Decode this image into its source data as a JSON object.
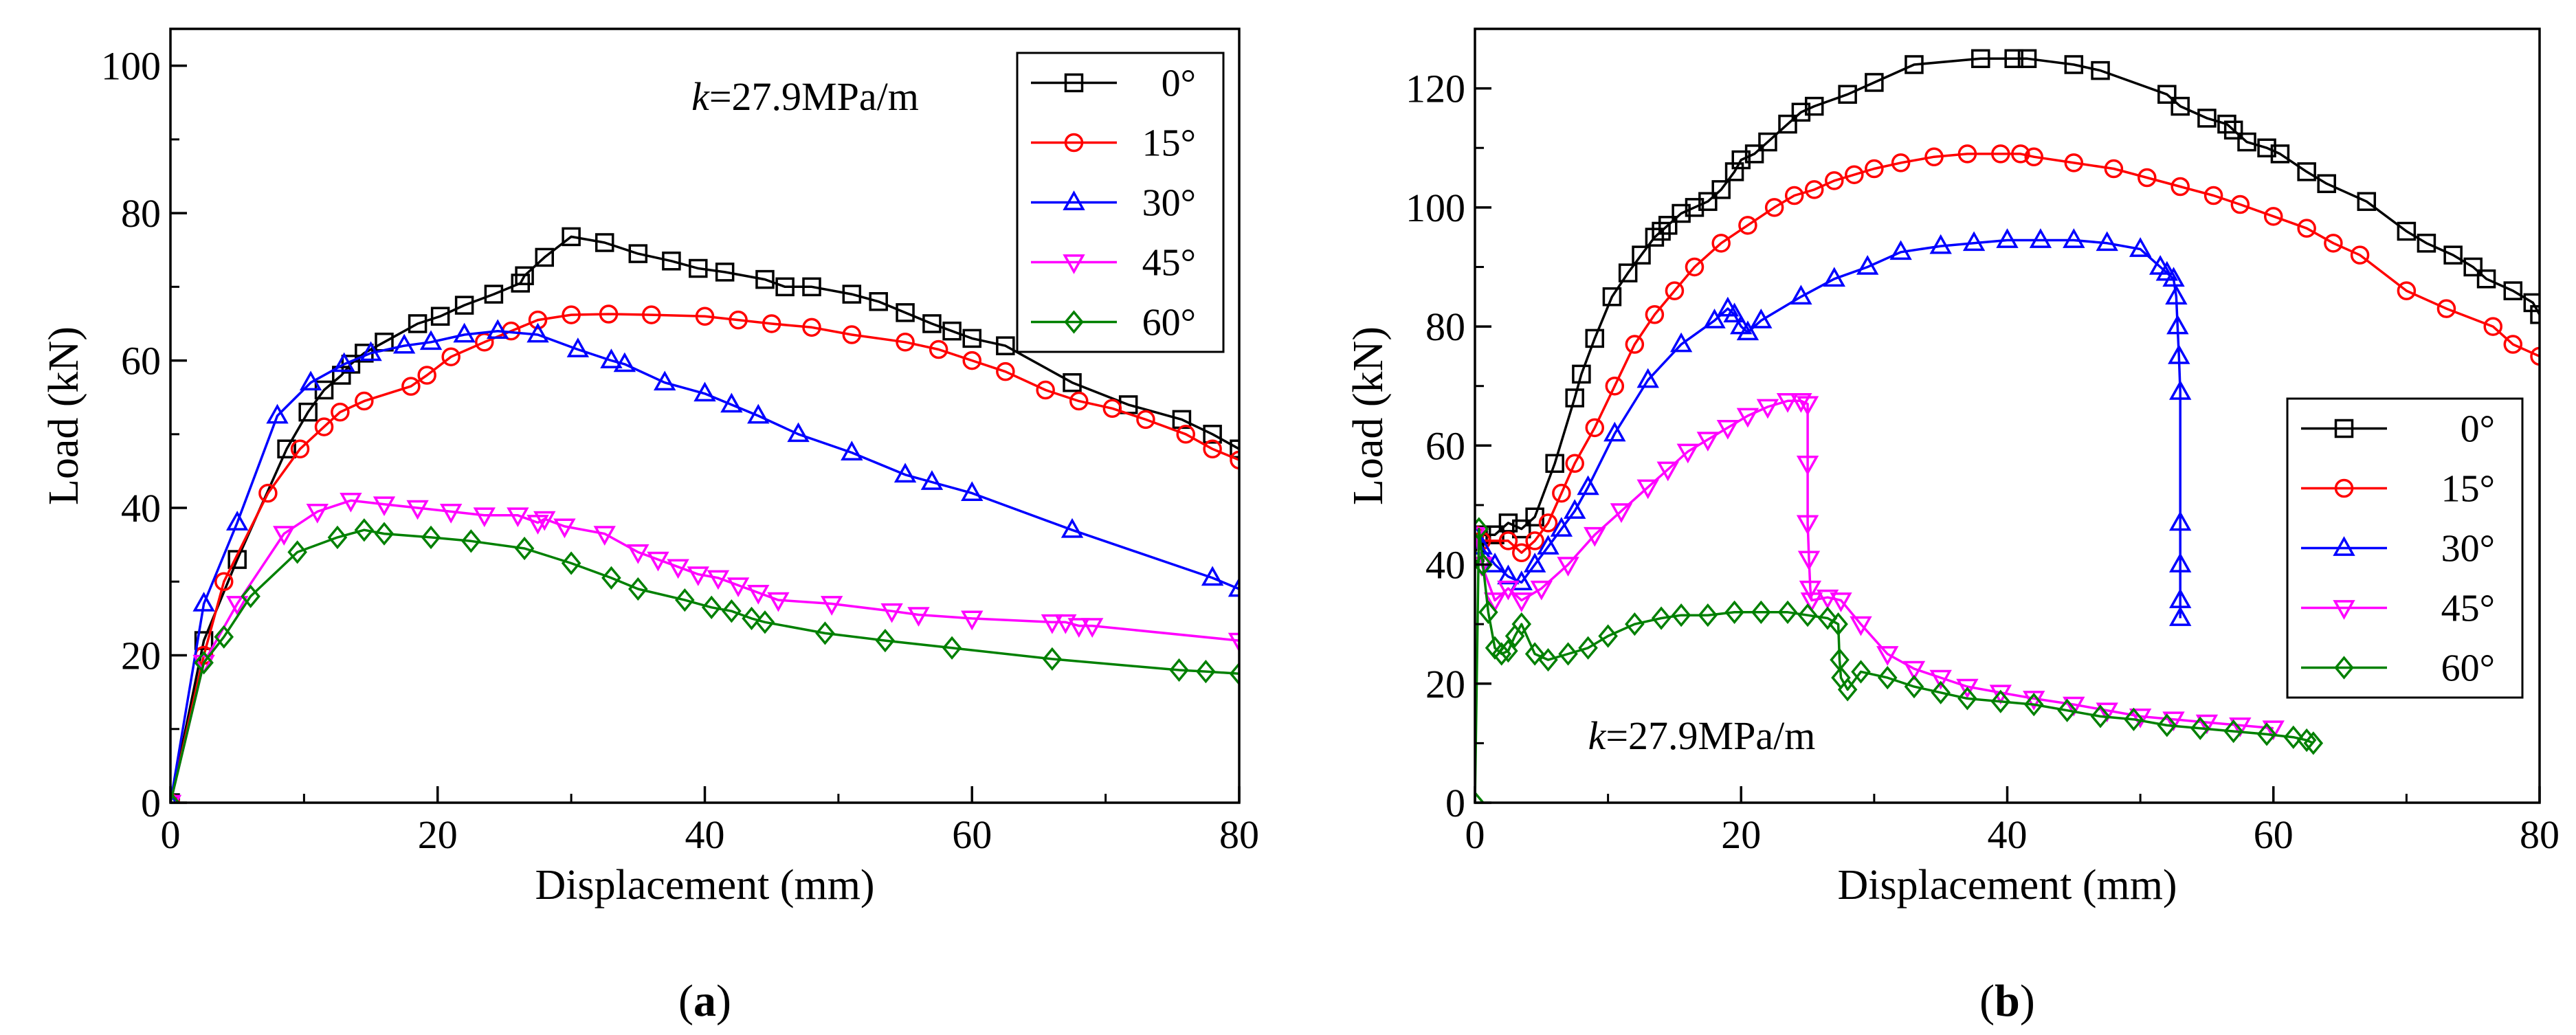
{
  "chart_data": [
    {
      "panel_label": "(a)",
      "panel_letter": "a",
      "type": "line",
      "xlabel": "Displacement (mm)",
      "ylabel": "Load (kN)",
      "xlim": [
        0,
        80
      ],
      "ylim": [
        0,
        105
      ],
      "xticks": [
        "0",
        "20",
        "40",
        "60",
        "80"
      ],
      "yticks": [
        "0",
        "20",
        "40",
        "60",
        "80",
        "100"
      ],
      "ytick_values": [
        0,
        20,
        40,
        60,
        80,
        100
      ],
      "xtick_values": [
        0,
        20,
        40,
        60,
        80
      ],
      "annotation": {
        "italic": "k",
        "text": "=27.9MPa/m",
        "x": 39,
        "y": 94
      },
      "legend_position": "top-right",
      "series": [
        {
          "name": "0°",
          "color": "#000000",
          "marker": "square",
          "x": [
            0,
            2.5,
            5,
            8.7,
            10.3,
            11.5,
            12.8,
            13.5,
            14.5,
            16,
            18.5,
            20.2,
            22,
            24.2,
            26.2,
            26.5,
            28,
            30,
            32.5,
            35,
            37.5,
            39.5,
            41.5,
            44.5,
            46,
            48,
            51,
            53,
            55,
            57,
            58.5,
            60,
            62.5,
            67.5,
            71.7,
            75.7,
            78,
            80
          ],
          "y": [
            0,
            22,
            33,
            48,
            53,
            56,
            58,
            59.5,
            61,
            62.5,
            65,
            66,
            67.5,
            69,
            70.5,
            71.5,
            74,
            76.8,
            76,
            74.5,
            73.5,
            72.5,
            72,
            71,
            70,
            70,
            69,
            68,
            66.5,
            65,
            64,
            63,
            62,
            57,
            54,
            52,
            50,
            48
          ]
        },
        {
          "name": "15°",
          "color": "#ff0000",
          "marker": "circle",
          "x": [
            0,
            2.5,
            4,
            7.3,
            9.7,
            11.5,
            12.7,
            14.5,
            18,
            19.2,
            21,
            23.5,
            25.5,
            27.5,
            30,
            32.8,
            36,
            40,
            42.5,
            45,
            48,
            51,
            55,
            57.5,
            60,
            62.5,
            65.5,
            68,
            70.5,
            73,
            76,
            78,
            80
          ],
          "y": [
            0,
            20,
            30,
            42,
            48,
            51,
            53,
            54.5,
            56.5,
            58,
            60.5,
            62.5,
            64,
            65.5,
            66.2,
            66.3,
            66.2,
            66,
            65.5,
            65,
            64.5,
            63.5,
            62.5,
            61.5,
            60,
            58.5,
            56,
            54.5,
            53.5,
            52,
            50,
            48,
            46.5
          ]
        },
        {
          "name": "30°",
          "color": "#0000ff",
          "marker": "triangle-up",
          "x": [
            0,
            2.5,
            5,
            8,
            10.5,
            13,
            15,
            17.5,
            19.5,
            22,
            24.5,
            27.5,
            30.5,
            33,
            34,
            37,
            40,
            42,
            44,
            47,
            51,
            55,
            57,
            60,
            67.5,
            78,
            80
          ],
          "y": [
            0,
            27,
            38,
            52.5,
            57,
            59.5,
            61,
            62,
            62.5,
            63.5,
            64,
            63.5,
            61.5,
            60,
            59.5,
            57,
            55.5,
            54,
            52.5,
            50,
            47.5,
            44.5,
            43.5,
            42,
            37,
            30.5,
            29
          ]
        },
        {
          "name": "45°",
          "color": "#ff00ff",
          "marker": "triangle-down",
          "x": [
            0,
            2.5,
            5,
            8.5,
            11,
            13.5,
            16,
            18.5,
            21,
            23.5,
            26,
            27.5,
            28,
            29.5,
            32.5,
            35,
            36.5,
            38,
            39.5,
            41,
            42.5,
            44,
            45.5,
            49.5,
            54,
            56,
            60,
            66,
            67,
            68,
            69,
            80
          ],
          "y": [
            0,
            19,
            27,
            36.5,
            39.5,
            41,
            40.5,
            40,
            39.5,
            39,
            39,
            38,
            38.5,
            37.5,
            36.5,
            34,
            33,
            32,
            31,
            30.5,
            29.5,
            28.5,
            27.5,
            27,
            26,
            25.5,
            25,
            24.5,
            24.5,
            24,
            24,
            22
          ]
        },
        {
          "name": "60°",
          "color": "#008000",
          "marker": "diamond",
          "x": [
            0,
            2.5,
            4,
            6,
            9.5,
            12.5,
            14.5,
            16,
            19.5,
            22.5,
            26.5,
            30,
            33,
            35,
            38.5,
            40.5,
            42,
            43.5,
            44.5,
            49,
            53.5,
            58.5,
            66,
            75.5,
            77.5,
            80
          ],
          "y": [
            0,
            19,
            22.5,
            28,
            34,
            36,
            37,
            36.5,
            36,
            35.5,
            34.5,
            32.5,
            30.5,
            29,
            27.5,
            26.5,
            26,
            25,
            24.5,
            23,
            22,
            21,
            19.5,
            18,
            17.8,
            17.5
          ]
        }
      ]
    },
    {
      "panel_label": "(b)",
      "panel_letter": "b",
      "type": "line",
      "xlabel": "Displacement (mm)",
      "ylabel": "Load (kN)",
      "xlim": [
        0,
        80
      ],
      "ylim": [
        0,
        130
      ],
      "xticks": [
        "0",
        "20",
        "40",
        "60",
        "80"
      ],
      "yticks": [
        "0",
        "20",
        "40",
        "60",
        "80",
        "100",
        "120"
      ],
      "ytick_values": [
        0,
        20,
        40,
        60,
        80,
        100,
        120
      ],
      "xtick_values": [
        0,
        20,
        40,
        60,
        80
      ],
      "annotation": {
        "italic": "k",
        "text": "=27.9MPa/m",
        "x": 8.5,
        "y": 9
      },
      "legend_position": "center-right",
      "series": [
        {
          "name": "0°",
          "color": "#000000",
          "marker": "square",
          "x": [
            0,
            0.5,
            1.5,
            2.5,
            3.5,
            4.5,
            6,
            7.5,
            8,
            9,
            10.3,
            11.5,
            12.5,
            13.5,
            14,
            14.5,
            15.5,
            16.5,
            17.5,
            18.5,
            19.5,
            20,
            21,
            22,
            23.5,
            24.5,
            25.5,
            28,
            30,
            33,
            38,
            40.5,
            41.5,
            45,
            47,
            52,
            53,
            55,
            56.5,
            57,
            58,
            59.5,
            60.5,
            62.5,
            64,
            67,
            70,
            71.5,
            73.5,
            75,
            76,
            78,
            79.5,
            80
          ],
          "y": [
            42,
            45,
            45,
            47,
            46,
            48,
            57,
            68,
            72,
            78,
            85,
            89,
            92,
            95,
            96,
            97,
            99,
            100,
            101,
            103,
            106,
            108,
            109,
            111,
            114,
            116,
            117,
            119,
            121,
            124,
            125,
            125,
            125,
            124,
            123,
            119,
            117,
            115,
            114,
            113,
            111,
            110,
            109,
            106,
            104,
            101,
            96,
            94,
            92,
            90,
            88,
            86,
            84,
            82
          ]
        },
        {
          "name": "15°",
          "color": "#ff0000",
          "marker": "circle",
          "x": [
            0,
            0.5,
            2.5,
            3.5,
            4.5,
            5.5,
            6.5,
            7.5,
            9,
            10.5,
            12,
            13.5,
            15,
            16.5,
            18.5,
            20.5,
            22.5,
            24,
            25.5,
            27,
            28.5,
            30,
            32,
            34.5,
            37,
            39.5,
            41,
            42,
            45,
            48,
            50.5,
            53,
            55.5,
            57.5,
            60,
            62.5,
            64.5,
            66.5,
            70,
            73,
            76.5,
            78,
            80
          ],
          "y": [
            45,
            44,
            44,
            42,
            44,
            47,
            52,
            57,
            63,
            70,
            77,
            82,
            86,
            90,
            94,
            97,
            100,
            102,
            103,
            104.5,
            105.5,
            106.5,
            107.5,
            108.5,
            109,
            109,
            109,
            108.5,
            107.5,
            106.5,
            105,
            103.5,
            102,
            100.5,
            98.5,
            96.5,
            94,
            92,
            86,
            83,
            80,
            77,
            75
          ]
        },
        {
          "name": "30°",
          "color": "#0000ff",
          "marker": "triangle-up",
          "x": [
            0,
            0.5,
            1.5,
            2.5,
            3.5,
            4.5,
            5.5,
            6.5,
            7.5,
            8.5,
            10.5,
            13,
            15.5,
            18,
            19,
            19.5,
            20,
            20.5,
            21.5,
            24.5,
            27,
            29.5,
            32,
            35,
            37.5,
            40,
            42.5,
            45,
            47.5,
            50,
            51.5,
            52,
            52.5,
            52.7,
            52.8,
            52.9,
            53,
            53,
            53,
            53,
            53
          ],
          "y": [
            45,
            43,
            40,
            38,
            37,
            40,
            43,
            46,
            49,
            53,
            62,
            71,
            77,
            81,
            83,
            82,
            80,
            79,
            81,
            85,
            88,
            90,
            92.5,
            93.5,
            94,
            94.5,
            94.5,
            94.5,
            94,
            93,
            90,
            89,
            88,
            85,
            80,
            75,
            69,
            47,
            40,
            34,
            31
          ]
        },
        {
          "name": "45°",
          "color": "#ff00ff",
          "marker": "triangle-down",
          "x": [
            0,
            0.5,
            1.5,
            2.5,
            3.5,
            5,
            7,
            9,
            11,
            13,
            14.5,
            16,
            17.5,
            19,
            20.5,
            22,
            23.5,
            24.5,
            25,
            25,
            25,
            25.1,
            25.2,
            25.3,
            26.5,
            27.5,
            29,
            31,
            33,
            35,
            37,
            39.5,
            42,
            45,
            47.5,
            50,
            52.5,
            55,
            57.5,
            60
          ],
          "y": [
            45,
            40,
            34,
            36,
            34,
            36,
            40,
            45,
            49,
            53,
            56,
            59,
            61,
            63,
            65,
            66.5,
            67.5,
            67.5,
            67,
            57,
            47,
            41,
            36,
            34,
            34.5,
            34,
            30,
            25,
            22.5,
            21,
            19.5,
            18.5,
            17.5,
            16.5,
            15.5,
            14.5,
            14,
            13.5,
            13,
            12.5
          ]
        },
        {
          "name": "60°",
          "color": "#008000",
          "marker": "diamond",
          "x": [
            0,
            0.3,
            0.6,
            1,
            1.5,
            2,
            2.5,
            3,
            3.5,
            4.5,
            5.5,
            7,
            8.5,
            10,
            12,
            14,
            15.5,
            17.5,
            19.5,
            21.5,
            23.5,
            25,
            26.5,
            27.3,
            27.4,
            27.5,
            28,
            29,
            31,
            33,
            35,
            37,
            39.5,
            42,
            44.5,
            47,
            49.5,
            52,
            54.5,
            57,
            59.5,
            61.5,
            62.5,
            63
          ],
          "y": [
            0,
            46,
            40,
            32,
            26,
            25,
            25.5,
            28,
            30,
            25,
            24,
            25,
            26,
            28,
            30,
            31,
            31.5,
            31.5,
            32,
            32,
            32,
            31.5,
            31,
            30,
            24,
            21,
            19,
            22,
            21,
            19.5,
            18.5,
            17.5,
            17,
            16.5,
            15.5,
            14.5,
            14,
            13,
            12.5,
            12,
            11.5,
            11,
            10.5,
            10
          ]
        }
      ]
    }
  ]
}
